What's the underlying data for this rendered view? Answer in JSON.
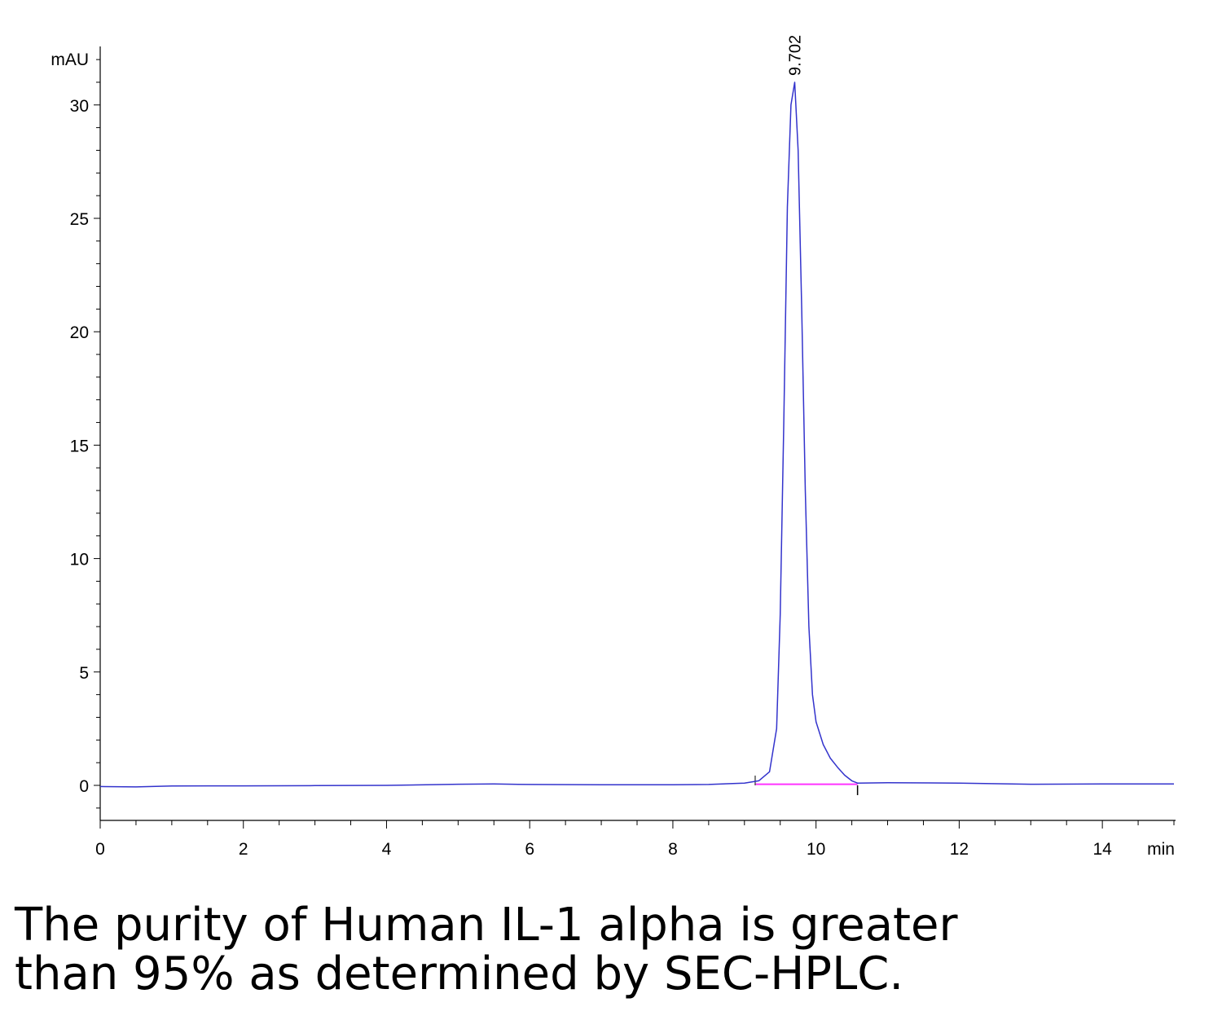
{
  "chart_data": {
    "type": "line",
    "xlabel": "min",
    "ylabel": "mAU",
    "xlim": [
      0,
      15
    ],
    "ylim": [
      -1.5,
      32.5
    ],
    "x_ticks": [
      "0",
      "2",
      "4",
      "6",
      "8",
      "10",
      "12",
      "14"
    ],
    "y_ticks": [
      "0",
      "5",
      "10",
      "15",
      "20",
      "25",
      "30"
    ],
    "grid": false,
    "legend": "none",
    "annotations": [
      {
        "text": "9.702",
        "x": 9.702,
        "y": 31.0
      }
    ],
    "integration_markers": [
      9.15,
      10.58
    ],
    "baseline": {
      "x": [
        9.15,
        10.58
      ],
      "y": [
        0.05,
        0.05
      ]
    },
    "series": [
      {
        "x": [
          0,
          0.5,
          1,
          1.5,
          2,
          3,
          4,
          5,
          5.5,
          6,
          7,
          8,
          8.5,
          9,
          9.2,
          9.35,
          9.45,
          9.5,
          9.55,
          9.6,
          9.65,
          9.702,
          9.75,
          9.8,
          9.85,
          9.9,
          9.95,
          10.0,
          10.1,
          10.2,
          10.3,
          10.4,
          10.5,
          10.58,
          11,
          12,
          13,
          14,
          15
        ],
        "y": [
          -0.05,
          -0.07,
          -0.03,
          -0.02,
          -0.02,
          -0.01,
          0.0,
          0.05,
          0.06,
          0.04,
          0.03,
          0.03,
          0.04,
          0.1,
          0.2,
          0.6,
          2.5,
          7.5,
          16.0,
          25.5,
          30.0,
          31.0,
          28.0,
          21.0,
          13.0,
          7.0,
          4.0,
          2.8,
          1.8,
          1.2,
          0.8,
          0.45,
          0.2,
          0.1,
          0.12,
          0.1,
          0.05,
          0.06,
          0.06
        ],
        "color": "#3333cc"
      }
    ]
  },
  "caption": {
    "line1": "The purity of Human IL-1 alpha is greater",
    "line2": "than 95% as determined by SEC-HPLC."
  }
}
